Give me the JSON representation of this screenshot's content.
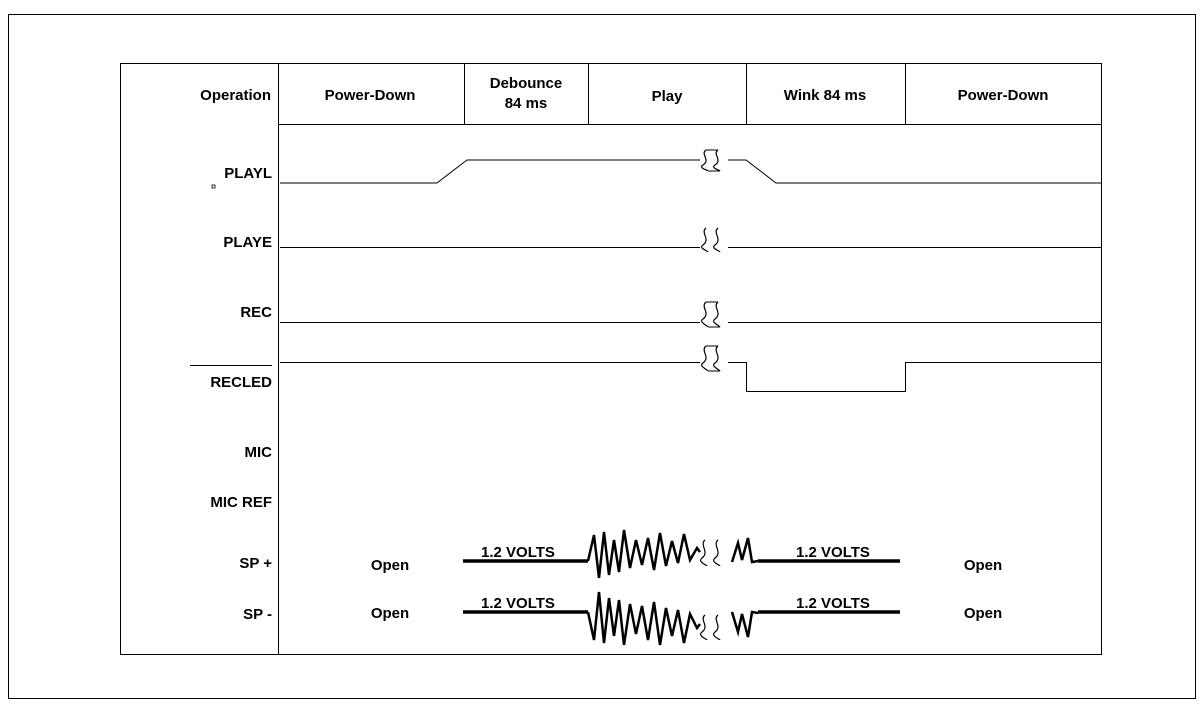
{
  "diagram": {
    "header": {
      "row_label": "Operation",
      "phases": [
        {
          "lines": [
            "Power-Down"
          ]
        },
        {
          "lines": [
            "Debounce",
            "84 ms"
          ]
        },
        {
          "lines": [
            "Play"
          ]
        },
        {
          "lines": [
            "Wink 84 ms"
          ]
        },
        {
          "lines": [
            "Power-Down"
          ]
        }
      ]
    },
    "signals": [
      {
        "label": "PLAYL"
      },
      {
        "label": "PLAYE"
      },
      {
        "label": "REC"
      },
      {
        "label": "RECLED",
        "overbar": true
      },
      {
        "label": "MIC"
      },
      {
        "label": "MIC REF"
      },
      {
        "label": "SP +"
      },
      {
        "label": "SP -"
      }
    ],
    "speaker": {
      "open_label": "Open",
      "voltage_label": "1.2 VOLTS"
    }
  }
}
